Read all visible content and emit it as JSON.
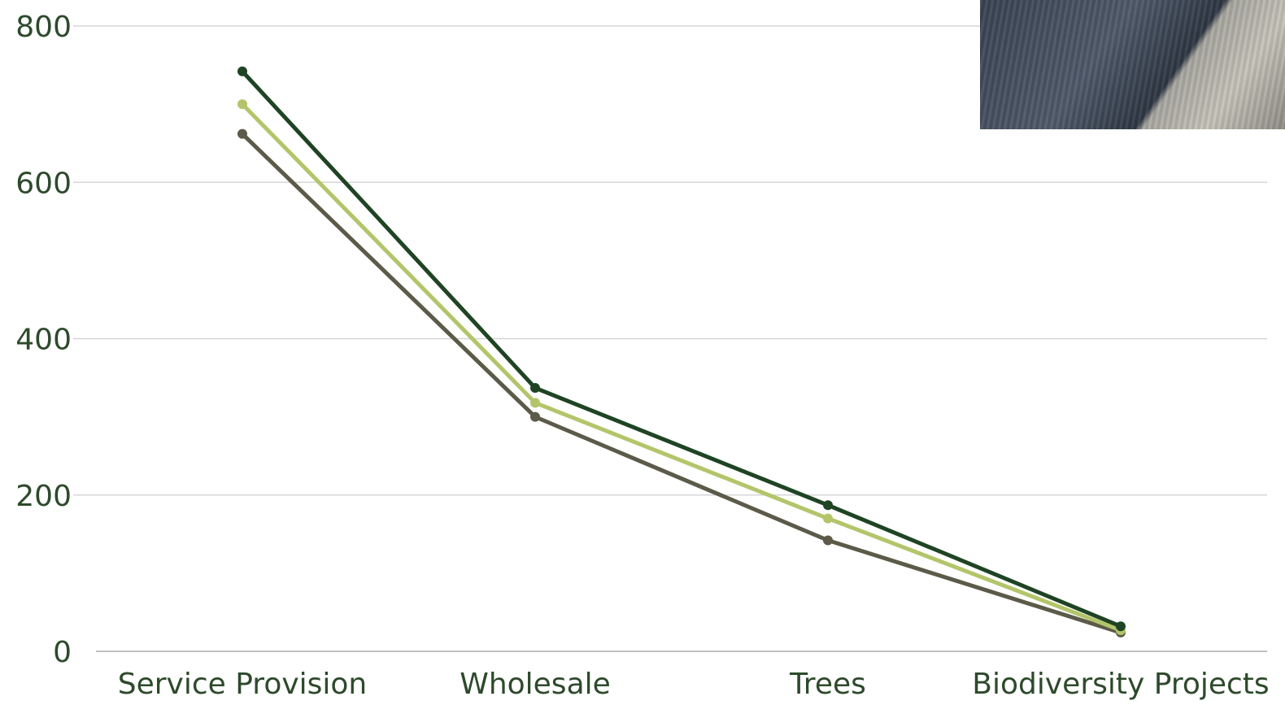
{
  "chart_data": {
    "type": "line",
    "categories": [
      "Service Provision",
      "Wholesale",
      "Trees",
      "Biodiversity Projects"
    ],
    "series": [
      {
        "color": "#1f4424",
        "values": [
          742,
          337,
          187,
          32
        ]
      },
      {
        "color": "#b3c56a",
        "values": [
          700,
          318,
          170,
          27
        ]
      },
      {
        "color": "#5c5a48",
        "values": [
          662,
          300,
          142,
          24
        ]
      }
    ],
    "yticks": [
      "0",
      "200",
      "400",
      "600",
      "800"
    ],
    "ylim": [
      0,
      800
    ],
    "grid": true
  },
  "photo": {
    "icon": "decorative-photo"
  }
}
